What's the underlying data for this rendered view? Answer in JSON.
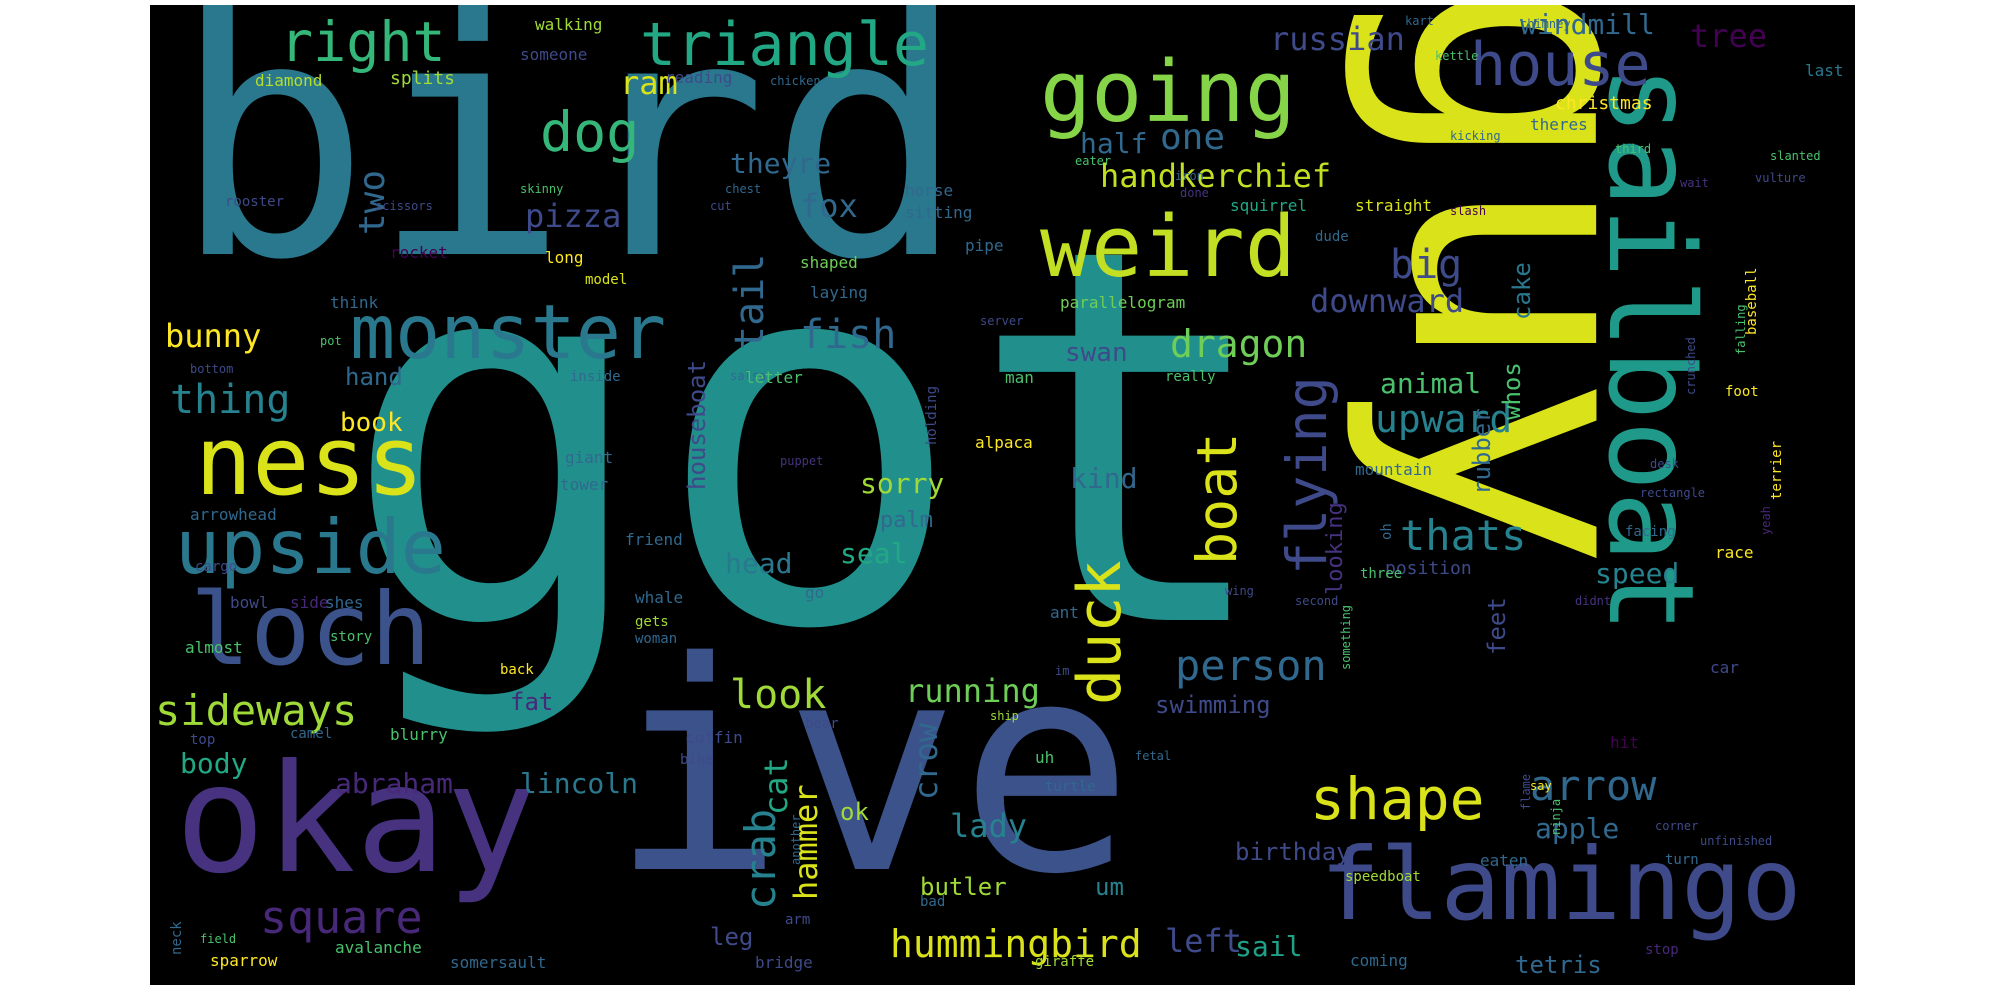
{
  "palette": {
    "dark_purple": "#440154",
    "indigo": "#46327e",
    "blue": "#365c8d",
    "teal_blue": "#277f8e",
    "teal": "#1fa187",
    "green": "#4ac16d",
    "light_green": "#a0da39",
    "yellow": "#dae319"
  },
  "words": [
    {
      "text": "got",
      "color": "#21908d"
    },
    {
      "text": "bird",
      "color": "#2a788e"
    },
    {
      "text": "guy",
      "color": "#dae319"
    },
    {
      "text": "ive",
      "color": "#3b528b"
    },
    {
      "text": "okay",
      "color": "#46327e"
    },
    {
      "text": "sailboat",
      "color": "#1f9a8a"
    },
    {
      "text": "flamingo",
      "color": "#3e4a89"
    },
    {
      "text": "loch",
      "color": "#3b528b"
    },
    {
      "text": "ness",
      "color": "#dae319"
    },
    {
      "text": "upside",
      "color": "#2a788e"
    },
    {
      "text": "monster",
      "color": "#2a788e"
    },
    {
      "text": "going",
      "color": "#86d549"
    },
    {
      "text": "weird",
      "color": "#c2df23"
    },
    {
      "text": "triangle",
      "color": "#22a884"
    },
    {
      "text": "right",
      "color": "#35b779"
    },
    {
      "text": "house",
      "color": "#3e4a89"
    },
    {
      "text": "dog",
      "color": "#35b779"
    },
    {
      "text": "square",
      "color": "#482878"
    },
    {
      "text": "sideways",
      "color": "#a0da39"
    },
    {
      "text": "shape",
      "color": "#dae319"
    },
    {
      "text": "duck",
      "color": "#dae319"
    },
    {
      "text": "flying",
      "color": "#3e4a89"
    },
    {
      "text": "boat",
      "color": "#dae319"
    },
    {
      "text": "person",
      "color": "#31688e"
    },
    {
      "text": "crab",
      "color": "#26828e"
    },
    {
      "text": "hummingbird",
      "color": "#dae319"
    },
    {
      "text": "look",
      "color": "#a0da39"
    },
    {
      "text": "arrow",
      "color": "#31688e"
    },
    {
      "text": "thats",
      "color": "#26828e"
    },
    {
      "text": "upward",
      "color": "#26828e"
    },
    {
      "text": "dragon",
      "color": "#6ece58"
    },
    {
      "text": "handkerchief",
      "color": "#c2df23"
    },
    {
      "text": "russian",
      "color": "#3e4a89"
    },
    {
      "text": "windmill",
      "color": "#31688e"
    },
    {
      "text": "thing",
      "color": "#26828e"
    },
    {
      "text": "bunny",
      "color": "#fde725"
    },
    {
      "text": "fish",
      "color": "#31688e"
    },
    {
      "text": "tail",
      "color": "#31688e"
    },
    {
      "text": "big",
      "color": "#3e4a89"
    },
    {
      "text": "downward",
      "color": "#3e4a89"
    },
    {
      "text": "two",
      "color": "#31688e"
    },
    {
      "text": "one",
      "color": "#31688e"
    },
    {
      "text": "pizza",
      "color": "#3e4a89"
    },
    {
      "text": "fox",
      "color": "#31688e"
    },
    {
      "text": "theyre",
      "color": "#31688e"
    },
    {
      "text": "ram",
      "color": "#dae319"
    },
    {
      "text": "half",
      "color": "#31688e"
    },
    {
      "text": "tree",
      "color": "#440154"
    },
    {
      "text": "animal",
      "color": "#4ac16d"
    },
    {
      "text": "lincoln",
      "color": "#2a788e"
    },
    {
      "text": "abraham",
      "color": "#482878"
    },
    {
      "text": "hammer",
      "color": "#dae319"
    },
    {
      "text": "crow",
      "color": "#31688e"
    },
    {
      "text": "lady",
      "color": "#26828e"
    },
    {
      "text": "running",
      "color": "#6ece58"
    },
    {
      "text": "left",
      "color": "#3e4a89"
    },
    {
      "text": "sail",
      "color": "#1fa187"
    },
    {
      "text": "apple",
      "color": "#31688e"
    },
    {
      "text": "birthday",
      "color": "#3e4a89"
    },
    {
      "text": "tetris",
      "color": "#31688e"
    },
    {
      "text": "swimming",
      "color": "#3e4a89"
    },
    {
      "text": "cat",
      "color": "#22a884"
    },
    {
      "text": "head",
      "color": "#2a788e"
    },
    {
      "text": "seal",
      "color": "#22a884"
    },
    {
      "text": "palm",
      "color": "#31688e"
    },
    {
      "text": "sorry",
      "color": "#a0da39"
    },
    {
      "text": "kind",
      "color": "#31688e"
    },
    {
      "text": "swan",
      "color": "#3e4a89"
    },
    {
      "text": "looking",
      "color": "#46327e"
    },
    {
      "text": "rubber",
      "color": "#31688e"
    },
    {
      "text": "whos",
      "color": "#4ac16d"
    },
    {
      "text": "feet",
      "color": "#3e4a89"
    },
    {
      "text": "speed",
      "color": "#26828e"
    },
    {
      "text": "cake",
      "color": "#2a788e"
    },
    {
      "text": "houseboat",
      "color": "#3e4a89"
    },
    {
      "text": "body",
      "color": "#22a884"
    },
    {
      "text": "book",
      "color": "#fde725"
    },
    {
      "text": "hand",
      "color": "#31688e"
    },
    {
      "text": "fat",
      "color": "#482878"
    },
    {
      "text": "um",
      "color": "#26828e"
    },
    {
      "text": "butler",
      "color": "#a0da39"
    },
    {
      "text": "ok",
      "color": "#a0da39"
    },
    {
      "text": "leg",
      "color": "#3e4a89"
    },
    {
      "text": "position",
      "color": "#3e4a89"
    },
    {
      "text": "christmas",
      "color": "#fde725"
    },
    {
      "text": "splits",
      "color": "#a0da39"
    },
    {
      "text": "diamond",
      "color": "#b5de2b"
    },
    {
      "text": "someone",
      "color": "#3e4a89"
    },
    {
      "text": "walking",
      "color": "#a0da39"
    },
    {
      "text": "reading",
      "color": "#3e4a89"
    },
    {
      "text": "chicken",
      "color": "#31688e"
    },
    {
      "text": "kart",
      "color": "#31688e"
    },
    {
      "text": "chimney",
      "color": "#31688e"
    },
    {
      "text": "kettle",
      "color": "#4ac16d"
    },
    {
      "text": "last",
      "color": "#2a788e"
    },
    {
      "text": "theres",
      "color": "#31688e"
    },
    {
      "text": "kicking",
      "color": "#31688e"
    },
    {
      "text": "third",
      "color": "#4ac16d"
    },
    {
      "text": "slanted",
      "color": "#4ac16d"
    },
    {
      "text": "vulture",
      "color": "#3e4a89"
    },
    {
      "text": "wait",
      "color": "#46327e"
    },
    {
      "text": "slash",
      "color": "#440154"
    },
    {
      "text": "straight",
      "color": "#dae319"
    },
    {
      "text": "squirrel",
      "color": "#22a884"
    },
    {
      "text": "iron",
      "color": "#31688e"
    },
    {
      "text": "done",
      "color": "#46327e"
    },
    {
      "text": "eater",
      "color": "#4ac16d"
    },
    {
      "text": "horse",
      "color": "#31688e"
    },
    {
      "text": "sitting",
      "color": "#31688e"
    },
    {
      "text": "chest",
      "color": "#31688e"
    },
    {
      "text": "cut",
      "color": "#3e4a89"
    },
    {
      "text": "skinny",
      "color": "#4ac16d"
    },
    {
      "text": "scissors",
      "color": "#3e4a89"
    },
    {
      "text": "rooster",
      "color": "#3e4a89"
    },
    {
      "text": "rocket",
      "color": "#440154"
    },
    {
      "text": "pipe",
      "color": "#31688e"
    },
    {
      "text": "shaped",
      "color": "#6ece58"
    },
    {
      "text": "laying",
      "color": "#31688e"
    },
    {
      "text": "long",
      "color": "#fde725"
    },
    {
      "text": "model",
      "color": "#dae319"
    },
    {
      "text": "think",
      "color": "#31688e"
    },
    {
      "text": "parallelogram",
      "color": "#6ece58"
    },
    {
      "text": "dude",
      "color": "#31688e"
    },
    {
      "text": "server",
      "color": "#3e4a89"
    },
    {
      "text": "pot",
      "color": "#4ac16d"
    },
    {
      "text": "bottom",
      "color": "#3e4a89"
    },
    {
      "text": "inside",
      "color": "#31688e"
    },
    {
      "text": "salsa",
      "color": "#31688e"
    },
    {
      "text": "letter",
      "color": "#4ac16d"
    },
    {
      "text": "man",
      "color": "#4ac16d"
    },
    {
      "text": "really",
      "color": "#4ac16d"
    },
    {
      "text": "crunched",
      "color": "#3e4a89"
    },
    {
      "text": "falling",
      "color": "#4ac16d"
    },
    {
      "text": "baseball",
      "color": "#fde725"
    },
    {
      "text": "foot",
      "color": "#fde725"
    },
    {
      "text": "holding",
      "color": "#3e4a89"
    },
    {
      "text": "alpaca",
      "color": "#fde725"
    },
    {
      "text": "puppet",
      "color": "#46327e"
    },
    {
      "text": "giant",
      "color": "#31688e"
    },
    {
      "text": "tower",
      "color": "#31688e"
    },
    {
      "text": "arrowhead",
      "color": "#31688e"
    },
    {
      "text": "friend",
      "color": "#31688e"
    },
    {
      "text": "mountain",
      "color": "#31688e"
    },
    {
      "text": "desk",
      "color": "#3e4a89"
    },
    {
      "text": "rectangle",
      "color": "#3e4a89"
    },
    {
      "text": "terrier",
      "color": "#fde725"
    },
    {
      "text": "race",
      "color": "#fde725"
    },
    {
      "text": "facing",
      "color": "#31688e"
    },
    {
      "text": "yeah",
      "color": "#482878"
    },
    {
      "text": "oh",
      "color": "#31688e"
    },
    {
      "text": "three",
      "color": "#4ac16d"
    },
    {
      "text": "second",
      "color": "#3e4a89"
    },
    {
      "text": "didnt",
      "color": "#46327e"
    },
    {
      "text": "wing",
      "color": "#3e4a89"
    },
    {
      "text": "cargo",
      "color": "#3e4a89"
    },
    {
      "text": "bowl",
      "color": "#3e4a89"
    },
    {
      "text": "side",
      "color": "#482878"
    },
    {
      "text": "shes",
      "color": "#31688e"
    },
    {
      "text": "whale",
      "color": "#31688e"
    },
    {
      "text": "gets",
      "color": "#a0da39"
    },
    {
      "text": "go",
      "color": "#31688e"
    },
    {
      "text": "ant",
      "color": "#31688e"
    },
    {
      "text": "almost",
      "color": "#4ac16d"
    },
    {
      "text": "story",
      "color": "#4ac16d"
    },
    {
      "text": "woman",
      "color": "#31688e"
    },
    {
      "text": "im",
      "color": "#3e4a89"
    },
    {
      "text": "back",
      "color": "#fde725"
    },
    {
      "text": "something",
      "color": "#4ac16d"
    },
    {
      "text": "car",
      "color": "#3e4a89"
    },
    {
      "text": "top",
      "color": "#3e4a89"
    },
    {
      "text": "camel",
      "color": "#31688e"
    },
    {
      "text": "blurry",
      "color": "#4ac16d"
    },
    {
      "text": "coffin",
      "color": "#3e4a89"
    },
    {
      "text": "bear",
      "color": "#3e4a89"
    },
    {
      "text": "ship",
      "color": "#a0da39"
    },
    {
      "text": "uh",
      "color": "#4ac16d"
    },
    {
      "text": "bike",
      "color": "#3e4a89"
    },
    {
      "text": "fetal",
      "color": "#31688e"
    },
    {
      "text": "turtle",
      "color": "#31688e"
    },
    {
      "text": "hit",
      "color": "#440154"
    },
    {
      "text": "say",
      "color": "#fde725"
    },
    {
      "text": "flame",
      "color": "#3e4a89"
    },
    {
      "text": "ninja",
      "color": "#4ac16d"
    },
    {
      "text": "corner",
      "color": "#3e4a89"
    },
    {
      "text": "unfinished",
      "color": "#3e4a89"
    },
    {
      "text": "speedboat",
      "color": "#a0da39"
    },
    {
      "text": "eaten",
      "color": "#31688e"
    },
    {
      "text": "turn",
      "color": "#31688e"
    },
    {
      "text": "another",
      "color": "#31688e"
    },
    {
      "text": "bad",
      "color": "#31688e"
    },
    {
      "text": "arm",
      "color": "#3e4a89"
    },
    {
      "text": "neck",
      "color": "#31688e"
    },
    {
      "text": "field",
      "color": "#4ac16d"
    },
    {
      "text": "sparrow",
      "color": "#fde725"
    },
    {
      "text": "avalanche",
      "color": "#4ac16d"
    },
    {
      "text": "somersault",
      "color": "#31688e"
    },
    {
      "text": "bridge",
      "color": "#3e4a89"
    },
    {
      "text": "giraffe",
      "color": "#a0da39"
    },
    {
      "text": "coming",
      "color": "#31688e"
    },
    {
      "text": "stop",
      "color": "#482878"
    }
  ]
}
